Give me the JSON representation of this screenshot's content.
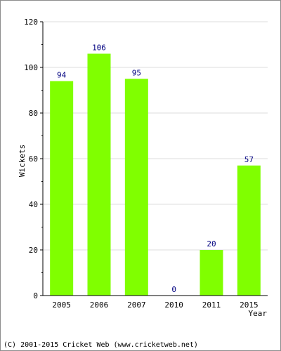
{
  "chart_data": {
    "type": "bar",
    "categories": [
      "2005",
      "2006",
      "2007",
      "2010",
      "2011",
      "2015"
    ],
    "values": [
      94,
      106,
      95,
      0,
      20,
      57
    ],
    "data_labels": [
      "94",
      "106",
      "95",
      "0",
      "20",
      "57"
    ],
    "xlabel": "Year",
    "ylabel": "Wickets",
    "ylim": [
      0,
      120
    ],
    "y_ticks": [
      "0",
      "20",
      "40",
      "60",
      "80",
      "100",
      "120"
    ],
    "grid": true,
    "bar_color": "#80ff00",
    "grid_color": "#dcdcdc",
    "label_color": "#000080"
  },
  "footer": {
    "copyright": "(C) 2001-2015 Cricket Web (www.cricketweb.net)"
  }
}
